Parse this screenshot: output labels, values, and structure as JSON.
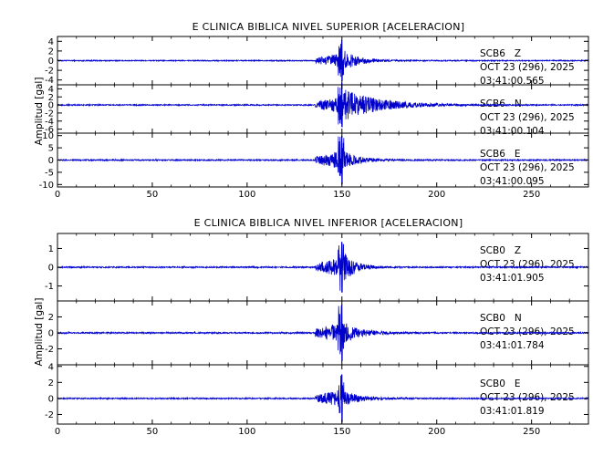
{
  "colors": {
    "trace": "#0000cc",
    "axis": "#000000",
    "background": "#ffffff"
  },
  "chart_data": [
    {
      "type": "line",
      "title": "E CLINICA BIBLICA NIVEL SUPERIOR [ACELERACION]",
      "ylabel": "Amplitud [gal]",
      "xlim": [
        0,
        280
      ],
      "xticks": [
        0,
        50,
        100,
        150,
        200,
        250
      ],
      "event_onset_s": 136,
      "peak_time_s": 150,
      "channels": [
        {
          "station": "SCB6",
          "component": "Z",
          "date": "OCT 23 (296), 2025",
          "time": "03:41:00.565",
          "ylim": [
            -5,
            5
          ],
          "yticks": [
            -4,
            -2,
            0,
            2,
            4
          ],
          "peak_amplitude": 4.2,
          "coda_decay_s": 8,
          "coda_level": 0.5
        },
        {
          "station": "SCB6",
          "component": "N",
          "date": "OCT 23 (296), 2025",
          "time": "03:41:00.104",
          "ylim": [
            -7,
            5
          ],
          "yticks": [
            -6,
            -4,
            -2,
            0,
            2,
            4
          ],
          "peak_amplitude": 5.5,
          "coda_decay_s": 18,
          "coda_level": 0.7
        },
        {
          "station": "SCB6",
          "component": "E",
          "date": "OCT 23 (296), 2025",
          "time": "03:41:00.095",
          "ylim": [
            -11,
            11
          ],
          "yticks": [
            -10,
            -5,
            0,
            5,
            10
          ],
          "peak_amplitude": 10,
          "coda_decay_s": 8,
          "coda_level": 0.35
        }
      ]
    },
    {
      "type": "line",
      "title": "E CLINICA BIBLICA NIVEL INFERIOR [ACELERACION]",
      "ylabel": "Amplitud [gal]",
      "xlim": [
        0,
        280
      ],
      "xticks": [
        0,
        50,
        100,
        150,
        200,
        250
      ],
      "event_onset_s": 136,
      "peak_time_s": 150,
      "channels": [
        {
          "station": "SCB0",
          "component": "Z",
          "date": "OCT 23 (296), 2025",
          "time": "03:41:01.905",
          "ylim": [
            -1.8,
            1.8
          ],
          "yticks": [
            -1,
            0,
            1
          ],
          "peak_amplitude": 1.35,
          "coda_decay_s": 6,
          "coda_level": 0.6
        },
        {
          "station": "SCB0",
          "component": "N",
          "date": "OCT 23 (296), 2025",
          "time": "03:41:01.784",
          "ylim": [
            -4,
            4
          ],
          "yticks": [
            -2,
            0,
            2
          ],
          "peak_amplitude": 3.5,
          "coda_decay_s": 9,
          "coda_level": 0.35
        },
        {
          "station": "SCB0",
          "component": "E",
          "date": "OCT 23 (296), 2025",
          "time": "03:41:01.819",
          "ylim": [
            -3.2,
            4.2
          ],
          "yticks": [
            -2,
            0,
            2,
            4
          ],
          "peak_amplitude": 3.0,
          "coda_decay_s": 9,
          "coda_level": 0.3
        }
      ]
    }
  ]
}
